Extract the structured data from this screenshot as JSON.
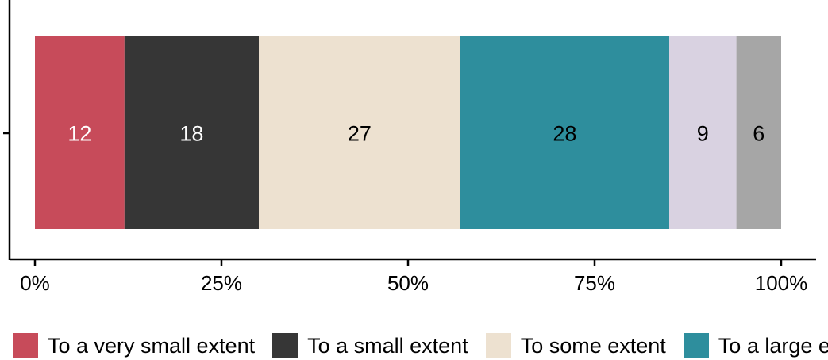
{
  "chart_data": {
    "type": "bar",
    "orientation": "horizontal",
    "stacked": true,
    "percent_scale": true,
    "series": [
      {
        "name": "To a very small extent",
        "value": 12,
        "color": "#C74B5A",
        "label_color": "#FFFFFF"
      },
      {
        "name": "To a small extent",
        "value": 18,
        "color": "#363636",
        "label_color": "#FFFFFF"
      },
      {
        "name": "To some extent",
        "value": 27,
        "color": "#EDE1D0",
        "label_color": "#000000"
      },
      {
        "name": "To a large extent",
        "value": 28,
        "color": "#2E8E9D",
        "label_color": "#000000"
      },
      {
        "name": "",
        "value": 9,
        "color": "#D9D2E1",
        "label_color": "#000000"
      },
      {
        "name": "",
        "value": 6,
        "color": "#A6A6A6",
        "label_color": "#000000"
      }
    ],
    "x_ticks": [
      "0%",
      "25%",
      "50%",
      "75%",
      "100%"
    ],
    "xlim": [
      0,
      1
    ],
    "legend_position": "bottom",
    "grid": false
  }
}
